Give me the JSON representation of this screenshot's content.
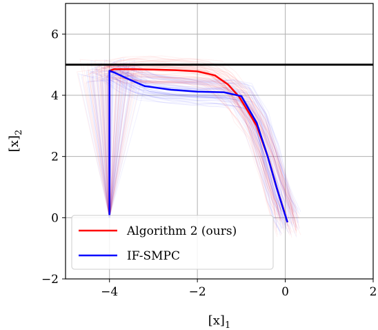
{
  "chart_data": {
    "type": "line",
    "xlabel": "[x]",
    "xlabel_sub": "1",
    "ylabel": "[x]",
    "ylabel_sub": "2",
    "xlim": [
      -5,
      2
    ],
    "ylim": [
      -2,
      7
    ],
    "xticks": [
      -4,
      -2,
      0,
      2
    ],
    "yticks": [
      -2,
      0,
      2,
      4,
      6
    ],
    "xtick_labels": [
      "−4",
      "−2",
      "0",
      "2"
    ],
    "ytick_labels": [
      "−2",
      "0",
      "2",
      "4",
      "6"
    ],
    "grid": true,
    "legend_position": "lower-left",
    "constraint_line": {
      "y": 5,
      "color": "#000000"
    },
    "series": [
      {
        "name": "Algorithm 2 (ours)",
        "color": "#ff0000",
        "x": [
          -4.0,
          -4.0,
          -3.9,
          -3.5,
          -3.0,
          -2.5,
          -2.0,
          -1.6,
          -1.3,
          -1.05,
          -0.9,
          -0.65,
          -0.4,
          -0.2,
          -0.05,
          0.05
        ],
        "y": [
          0.0,
          4.8,
          4.85,
          4.85,
          4.84,
          4.82,
          4.78,
          4.65,
          4.35,
          3.95,
          3.6,
          3.0,
          2.0,
          1.0,
          0.3,
          -0.15
        ]
      },
      {
        "name": "IF-SMPC",
        "color": "#0000ff",
        "x": [
          -4.0,
          -4.0,
          -3.9,
          -3.6,
          -3.2,
          -2.6,
          -2.0,
          -1.4,
          -1.0,
          -0.65,
          -0.4,
          -0.2,
          -0.05,
          0.05
        ],
        "y": [
          0.0,
          4.8,
          4.75,
          4.55,
          4.3,
          4.18,
          4.12,
          4.1,
          3.97,
          3.1,
          2.0,
          1.0,
          0.3,
          -0.15
        ]
      }
    ],
    "sample_trajectories": {
      "red_count": 60,
      "blue_count": 60
    }
  }
}
